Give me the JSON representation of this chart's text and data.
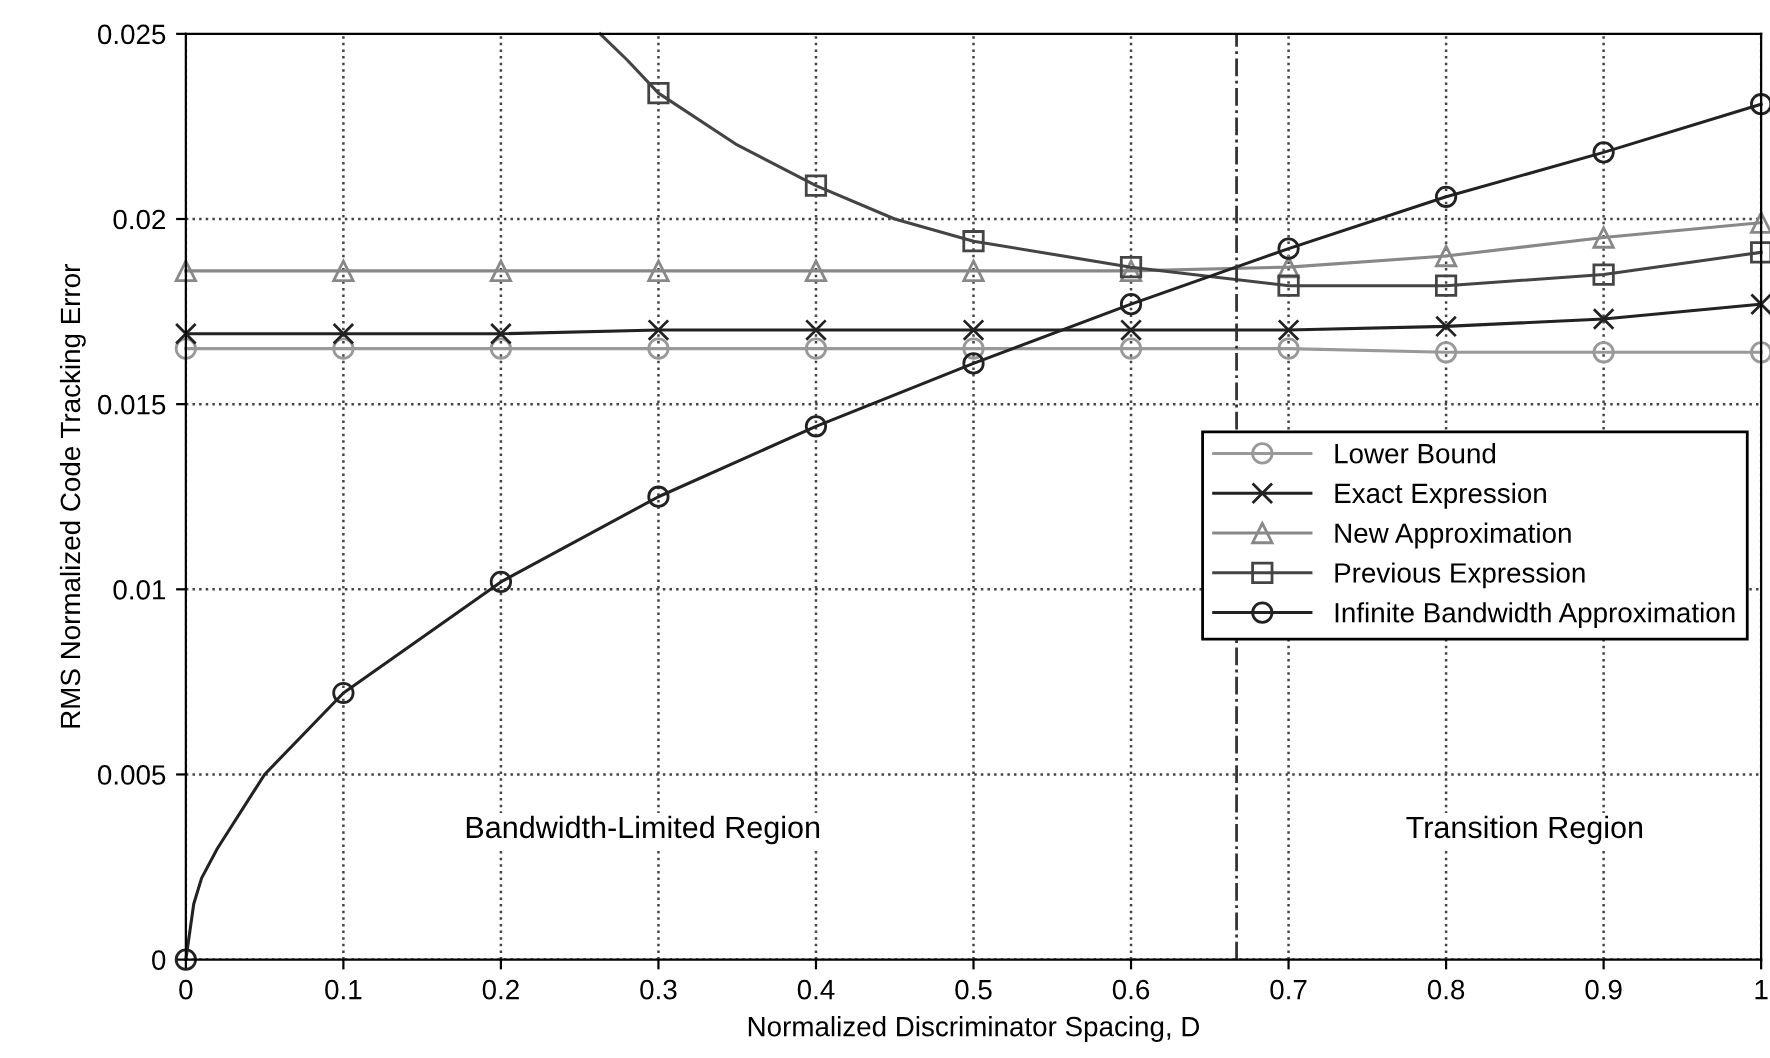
{
  "chart_data": {
    "type": "line",
    "xlabel": "Normalized Discriminator Spacing, D",
    "ylabel": "RMS Normalized Code Tracking Error",
    "xlim": [
      0,
      1
    ],
    "ylim": [
      0,
      0.025
    ],
    "xticks": [
      0,
      0.1,
      0.2,
      0.3,
      0.4,
      0.5,
      0.6,
      0.7,
      0.8,
      0.9,
      1
    ],
    "yticks": [
      0,
      0.005,
      0.01,
      0.015,
      0.02,
      0.025
    ],
    "grid": true,
    "legend": "right",
    "series": [
      {
        "name": "Lower Bound",
        "color": "#999999",
        "marker": "circle",
        "x": [
          0,
          0.1,
          0.2,
          0.3,
          0.4,
          0.5,
          0.6,
          0.7,
          0.8,
          0.9,
          1
        ],
        "values": [
          0.0165,
          0.0165,
          0.0165,
          0.0165,
          0.0165,
          0.0165,
          0.0165,
          0.0165,
          0.0164,
          0.0164,
          0.0164
        ]
      },
      {
        "name": "Exact Expression",
        "color": "#222222",
        "marker": "cross",
        "x": [
          0,
          0.1,
          0.2,
          0.3,
          0.4,
          0.5,
          0.6,
          0.7,
          0.8,
          0.9,
          1
        ],
        "values": [
          0.0169,
          0.0169,
          0.0169,
          0.017,
          0.017,
          0.017,
          0.017,
          0.017,
          0.0171,
          0.0173,
          0.0177
        ]
      },
      {
        "name": "New Approximation",
        "color": "#888888",
        "marker": "triangle",
        "x": [
          0,
          0.1,
          0.2,
          0.3,
          0.4,
          0.5,
          0.6,
          0.7,
          0.8,
          0.9,
          1
        ],
        "values": [
          0.0186,
          0.0186,
          0.0186,
          0.0186,
          0.0186,
          0.0186,
          0.0186,
          0.0187,
          0.019,
          0.0195,
          0.0199
        ]
      },
      {
        "name": "Previous Expression",
        "color": "#444444",
        "marker": "square",
        "x": [
          0.263,
          0.28,
          0.3,
          0.35,
          0.4,
          0.45,
          0.5,
          0.6,
          0.7,
          0.8,
          0.9,
          1
        ],
        "values": [
          0.025,
          0.0243,
          0.0234,
          0.022,
          0.0209,
          0.02,
          0.0194,
          0.0187,
          0.0182,
          0.0182,
          0.0185,
          0.0191
        ]
      },
      {
        "name": "Infinite Bandwidth Approximation",
        "color": "#222222",
        "marker": "circle",
        "x": [
          0,
          0.005,
          0.01,
          0.02,
          0.05,
          0.1,
          0.2,
          0.3,
          0.4,
          0.5,
          0.6,
          0.7,
          0.8,
          0.9,
          1
        ],
        "values": [
          0,
          0.0015,
          0.0022,
          0.003,
          0.005,
          0.0072,
          0.0102,
          0.0125,
          0.0144,
          0.0161,
          0.0177,
          0.0192,
          0.0206,
          0.0218,
          0.0231
        ]
      }
    ],
    "ref_lines": [
      {
        "axis": "x",
        "value": 0.667,
        "color": "#333333",
        "line_style": "dashdot"
      }
    ],
    "annotations": [
      "Bandwidth-Limited Region",
      "Transition Region"
    ]
  }
}
